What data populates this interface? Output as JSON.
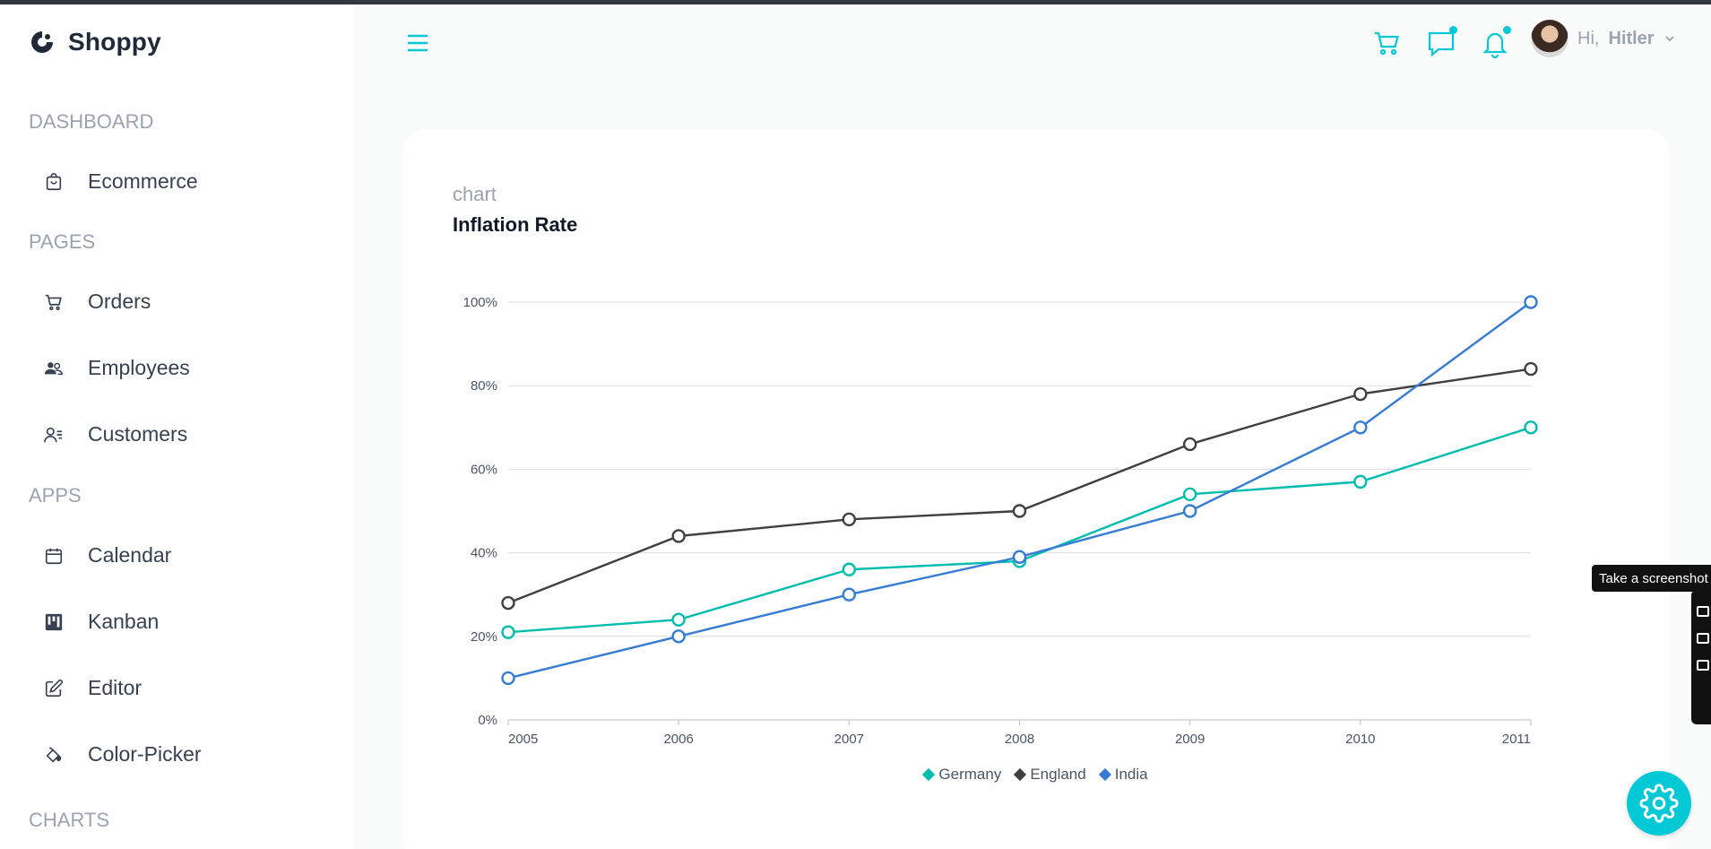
{
  "app": {
    "name": "Shoppy",
    "accent": "#03c9d7"
  },
  "sidebar": {
    "sections": [
      {
        "title": "DASHBOARD",
        "items": [
          {
            "label": "Ecommerce",
            "icon": "shopping-bag-icon"
          }
        ]
      },
      {
        "title": "PAGES",
        "items": [
          {
            "label": "Orders",
            "icon": "cart-icon"
          },
          {
            "label": "Employees",
            "icon": "employees-icon"
          },
          {
            "label": "Customers",
            "icon": "customers-icon"
          }
        ]
      },
      {
        "title": "APPS",
        "items": [
          {
            "label": "Calendar",
            "icon": "calendar-icon"
          },
          {
            "label": "Kanban",
            "icon": "kanban-icon"
          },
          {
            "label": "Editor",
            "icon": "edit-icon"
          },
          {
            "label": "Color-Picker",
            "icon": "paint-bucket-icon"
          }
        ]
      },
      {
        "title": "CHARTS",
        "items": []
      }
    ]
  },
  "header": {
    "menu_icon": "hamburger-icon",
    "icons": [
      "cart-icon",
      "chat-icon",
      "bell-icon"
    ],
    "user": {
      "greeting": "Hi,",
      "name": "Hitler"
    }
  },
  "card": {
    "subtitle": "chart",
    "title": "Inflation Rate"
  },
  "chart_data": {
    "type": "line",
    "x": [
      "2005",
      "2006",
      "2007",
      "2008",
      "2009",
      "2010",
      "2011"
    ],
    "yticks": [
      "0%",
      "20%",
      "40%",
      "60%",
      "80%",
      "100%"
    ],
    "ylim": [
      0,
      100
    ],
    "grid": true,
    "legend_position": "bottom",
    "series": [
      {
        "name": "Germany",
        "color": "#00bdae",
        "values": [
          21,
          24,
          36,
          38,
          54,
          57,
          70
        ]
      },
      {
        "name": "England",
        "color": "#404041",
        "values": [
          28,
          44,
          48,
          50,
          66,
          78,
          84
        ]
      },
      {
        "name": "India",
        "color": "#357cd2",
        "values": [
          10,
          20,
          30,
          39,
          50,
          70,
          100
        ]
      }
    ]
  },
  "overlay": {
    "tooltip": "Take a screenshot"
  }
}
